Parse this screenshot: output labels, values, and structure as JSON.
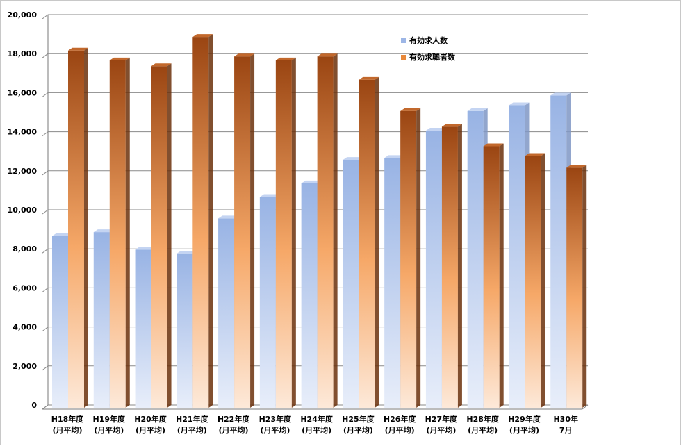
{
  "chart_data": {
    "type": "bar",
    "title": "",
    "xlabel": "",
    "ylabel": "",
    "ylim": [
      0,
      20000
    ],
    "yticks": [
      "0",
      "2,000",
      "4,000",
      "6,000",
      "8,000",
      "10,000",
      "12,000",
      "14,000",
      "16,000",
      "18,000",
      "20,000"
    ],
    "categories": [
      [
        "H18年度",
        "(月平均)"
      ],
      [
        "H19年度",
        "(月平均)"
      ],
      [
        "H20年度",
        "(月平均)"
      ],
      [
        "H21年度",
        "(月平均)"
      ],
      [
        "H22年度",
        "(月平均)"
      ],
      [
        "H23年度",
        "(月平均)"
      ],
      [
        "H24年度",
        "(月平均)"
      ],
      [
        "H25年度",
        "(月平均)"
      ],
      [
        "H26年度",
        "(月平均)"
      ],
      [
        "H27年度",
        "(月平均)"
      ],
      [
        "H28年度",
        "(月平均)"
      ],
      [
        "H29年度",
        "(月平均)"
      ],
      [
        "H30年",
        "7月"
      ]
    ],
    "series": [
      {
        "name": "有効求人数",
        "values": [
          8800,
          9000,
          8100,
          7900,
          9700,
          10800,
          11500,
          12700,
          12800,
          14200,
          15200,
          15500,
          16000
        ],
        "color": "#9db6e6"
      },
      {
        "name": "有効求職者数",
        "values": [
          18300,
          17800,
          17500,
          19000,
          18000,
          17800,
          18000,
          16800,
          15200,
          14400,
          13400,
          12900,
          12300
        ],
        "color": "#b9601e"
      }
    ],
    "grid": true,
    "legend": "top-right"
  }
}
